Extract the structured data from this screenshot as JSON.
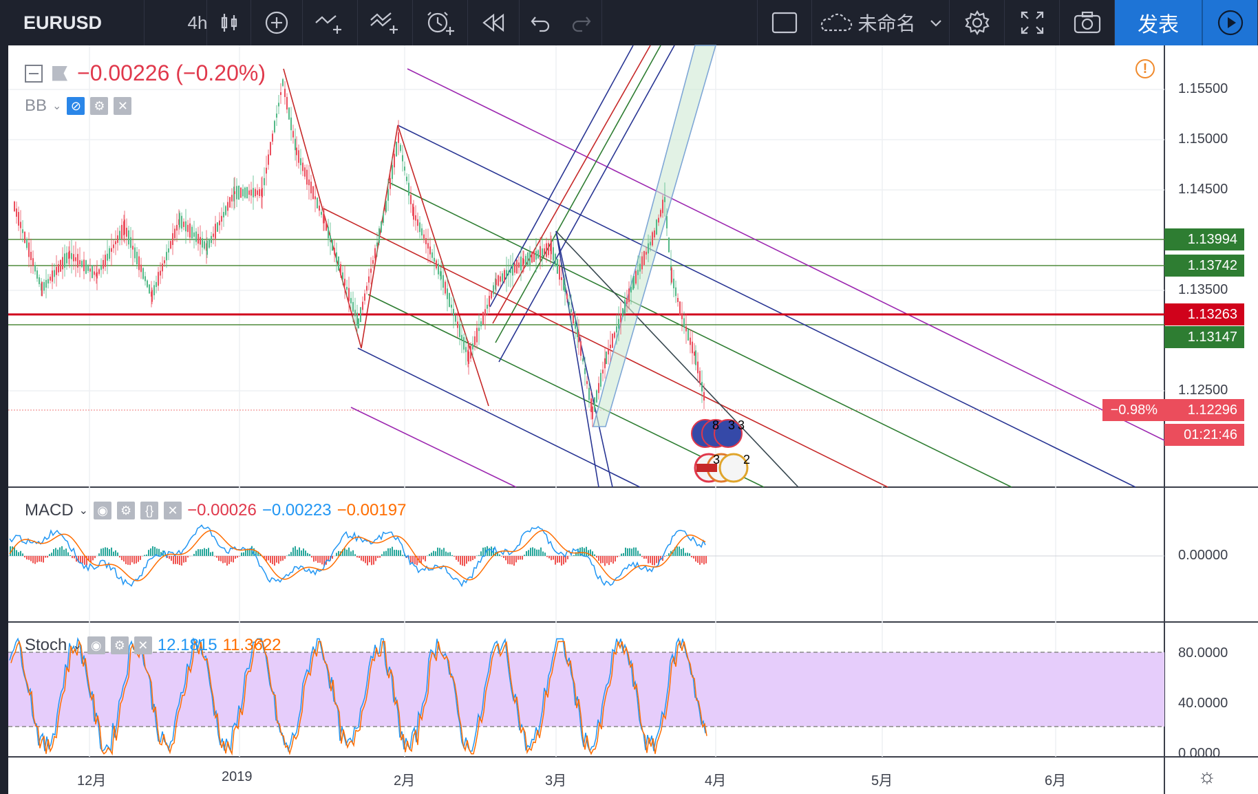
{
  "toolbar": {
    "symbol": "EURUSD",
    "interval": "4h",
    "layout_name": "未命名",
    "publish_label": "发表"
  },
  "legend": {
    "change_text": "−0.00226 (−0.20%)",
    "bb_label": "BB"
  },
  "macd": {
    "label": "MACD",
    "value1": "−0.00026",
    "value2": "−0.00223",
    "value3": "−0.00197",
    "zero_label": "0.00000"
  },
  "stoch": {
    "label": "Stoch",
    "k": "12.1815",
    "d": "11.3622",
    "axis": [
      "80.0000",
      "40.0000",
      "0.0000"
    ]
  },
  "price_axis": [
    "1.15500",
    "1.15000",
    "1.14500",
    "1.13500",
    "1.12500"
  ],
  "price_tags": {
    "p1": "1.13994",
    "p2": "1.13742",
    "current": "1.13263",
    "p3": "1.13147",
    "last": "1.12296",
    "pct": "−0.98%",
    "countdown": "01:21:46"
  },
  "time_axis": [
    "12月",
    "2019",
    "2月",
    "3月",
    "4月",
    "5月",
    "6月"
  ],
  "events": {
    "eu_top": "8",
    "eu_top2": "3",
    "eu_top3": "3",
    "us_a": "3",
    "us_b": "2"
  },
  "colors": {
    "up": "#53b987",
    "down": "#eb4d5c",
    "accent": "#1e74d6",
    "current_line": "#d0021b",
    "green_tag": "#2e7d32"
  }
}
